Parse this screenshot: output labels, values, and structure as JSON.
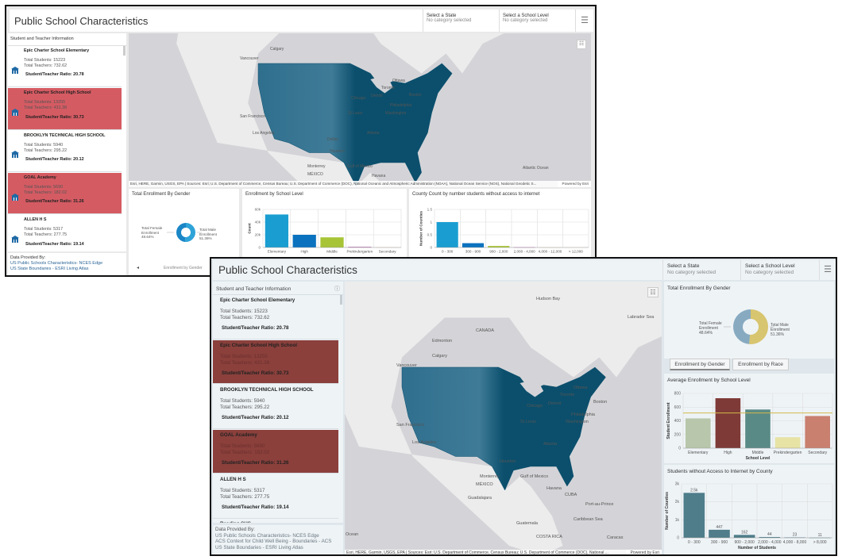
{
  "schools": [
    {
      "name": "Epic Charter School Elementary",
      "students": "Total Students: 15223",
      "teachers": "Total Teachers: 732.62",
      "ratio": "Student/Teacher Ratio: 20.78",
      "highlighted": false
    },
    {
      "name": "Epic Charter School High School",
      "students": "Total Students: 13255",
      "teachers": "Total Teachers: 431.38",
      "ratio": "Student/Teacher Ratio: 30.73",
      "highlighted": true
    },
    {
      "name": "BROOKLYN TECHNICAL HIGH SCHOOL",
      "students": "Total Students: 5940",
      "teachers": "Total Teachers: 295.22",
      "ratio": "Student/Teacher Ratio: 20.12",
      "highlighted": false
    },
    {
      "name": "GOAL Academy",
      "students": "Total Students: 5690",
      "teachers": "Total Teachers: 182.02",
      "ratio": "Student/Teacher Ratio: 31.26",
      "highlighted": true
    },
    {
      "name": "ALLEN H S",
      "students": "Total Students: 5317",
      "teachers": "Total Teachers: 277.75",
      "ratio": "Student/Teacher Ratio: 19.14",
      "highlighted": false
    }
  ],
  "back_window": {
    "title": "Public School Characteristics",
    "filters": [
      {
        "label": "Select a State",
        "value": "No category selected"
      },
      {
        "label": "Select a School Level",
        "value": "No category selected"
      }
    ],
    "list_title": "Student and Teacher Information",
    "highlight_color": "#d55b63",
    "footer": {
      "label": "Data Provided By:",
      "links": [
        "US Public Schools Characteristics- NCES Edge",
        "US State Boundaries - ESRI Living Atlas"
      ]
    },
    "map": {
      "labels": [
        "Calgary",
        "Vancouver",
        "San Francisco",
        "Los Angeles",
        "Dallas",
        "Houston",
        "Chicago",
        "Detroit",
        "Toronto",
        "Ottawa",
        "Boston",
        "Philadelphia",
        "Washington",
        "St Louis",
        "Atlanta",
        "Monterrey",
        "MÉXICO",
        "Gulf of Mexico",
        "Havana",
        "Atlantic Ocean"
      ],
      "attribution": "Esri, HERE, Garmin, USGS, EPA | Sources: Esri; U.S. Department of Commerce, Census Bureau; U.S. Department of Commerce (DOC), National Oceanic and Atmospheric Administration (NOAA), National Ocean Service (NOS), National Geodetic S...",
      "powered": "Powered by Esri"
    },
    "gender_panel": {
      "title": "Total Enrollment By Gender",
      "female_label": "Total Female Enrollment",
      "female_pct": "48.64%",
      "male_label": "Total Male Enrollment",
      "male_pct": "51.36%",
      "colors": {
        "female": "#1a86c6",
        "male": "#2ea3d8"
      },
      "nav_label": "Enrollment by Gender"
    }
  },
  "front_window": {
    "title": "Public School Characteristics",
    "filters": [
      {
        "label": "Select a State",
        "value": "No category selected"
      },
      {
        "label": "Select a School Level",
        "value": "No category selected"
      }
    ],
    "list_title": "Student and Teacher Information",
    "next_item_partial": "Reading SHS",
    "highlight_color": "#8b403c",
    "footer": {
      "label": "Data Provided By:",
      "links": [
        "US Public Schools Characteristics- NCES Edge",
        "ACS Context for Child Well Being - Boundaries - ACS",
        "US State Boundaries - ESRI Living Atlas"
      ]
    },
    "map": {
      "labels": [
        "Hudson Bay",
        "CANADA",
        "Edmonton",
        "Calgary",
        "Vancouver",
        "San Francisco",
        "Los Angeles",
        "Chicago",
        "Detroit",
        "Toronto",
        "Ottawa",
        "Boston",
        "Philadelphia",
        "Washington",
        "St Louis",
        "Atlanta",
        "Houston",
        "Monterrey",
        "MÉXICO",
        "Gulf of Mexico",
        "Havana",
        "CUBA",
        "Guadalajara",
        "Port-au-Prince",
        "Caribbean Sea",
        "Guatemala",
        "COSTA RICA",
        "Caracas",
        "Ocean",
        "Labrador Sea"
      ],
      "attribution": "Esri, HERE, Garmin, USGS, EPA | Sources: Esri; U.S. Department of Commerce, Census Bureau; U.S. Department of Commerce (DOC), National ...",
      "powered": "Powered by Esri"
    },
    "gender_panel": {
      "title": "Total Enrollment By Gender",
      "female_label": "Total Female Enrollment",
      "female_pct": "48.64%",
      "male_label": "Total Male Enrollment",
      "male_pct": "51.36%",
      "colors": {
        "female": "#87aac0",
        "male": "#d8c56f"
      }
    },
    "tabs": [
      {
        "label": "Enrollment by Gender",
        "active": true
      },
      {
        "label": "Enrollment by Race",
        "active": false
      }
    ]
  },
  "chart_data": [
    {
      "id": "back-school-level",
      "type": "bar",
      "title": "Enrollment by School Level",
      "ylabel": "Count",
      "xlabel": "",
      "categories": [
        "Elementary",
        "High",
        "Middle",
        "Prekindergarten",
        "Secondary"
      ],
      "values": [
        52000,
        20000,
        16000,
        1000,
        500
      ],
      "ylim": [
        0,
        60000
      ],
      "yticks": [
        "0",
        "20k",
        "40k",
        "60k"
      ],
      "grid": true,
      "colors": [
        "#1a9ed1",
        "#0a72bf",
        "#a6c436",
        "#b05fa8",
        "#f0d9c6"
      ]
    },
    {
      "id": "back-internet",
      "type": "bar",
      "title": "County Count by number students without access to internet",
      "ylabel": "Number of Counties",
      "xlabel": "",
      "categories": [
        "0 - 300",
        "300 - 900",
        "900 - 2,000",
        "2,000 - 4,000",
        "4,000 - 12,000",
        "> 12,000"
      ],
      "values": [
        1,
        0.17,
        0.06,
        0.01,
        0.005,
        0.002
      ],
      "ylim": [
        0,
        1.5
      ],
      "yticks": [
        "0",
        "0.5",
        "1",
        "1.5"
      ],
      "grid": true,
      "colors": [
        "#1a9ed1",
        "#0a72bf",
        "#a6c436",
        "#b05fa8",
        "#f0d9c6",
        "#f6eedd"
      ]
    },
    {
      "id": "front-school-level",
      "type": "bar",
      "title": "Average Enrollment by School Level",
      "ylabel": "Student Enrollment",
      "xlabel": "School Level",
      "categories": [
        "Elementary",
        "High",
        "Middle",
        "Prekindergarten",
        "Secondary"
      ],
      "values": [
        435,
        730,
        565,
        160,
        470
      ],
      "ylim": [
        0,
        800
      ],
      "yticks": [
        "0",
        "200",
        "400",
        "600",
        "800"
      ],
      "grid": true,
      "average_line": 515,
      "average_color": "#d4b84a",
      "colors": [
        "#b8c6ab",
        "#7e3a37",
        "#5a8a85",
        "#e6e3a5",
        "#c9806f"
      ]
    },
    {
      "id": "front-internet",
      "type": "bar",
      "title": "Students without Access to Internet by County",
      "ylabel": "Number of Counties",
      "xlabel": "Number of Students",
      "categories": [
        "0 - 300",
        "300 - 900",
        "900 - 2,000",
        "2,000 - 4,000",
        "4,000 - 8,000",
        "> 8,000"
      ],
      "values": [
        2500,
        447,
        162,
        44,
        23,
        11
      ],
      "data_labels": [
        "2.5k",
        "447",
        "162",
        "44",
        "23",
        "11"
      ],
      "ylim": [
        0,
        3000
      ],
      "yticks": [
        "0",
        "1k",
        "2k",
        "3k"
      ],
      "grid": true,
      "colors": [
        "#4f7d8a",
        "#4f7d8a",
        "#4f7d8a",
        "#4f7d8a",
        "#4f7d8a",
        "#4f7d8a"
      ]
    }
  ]
}
